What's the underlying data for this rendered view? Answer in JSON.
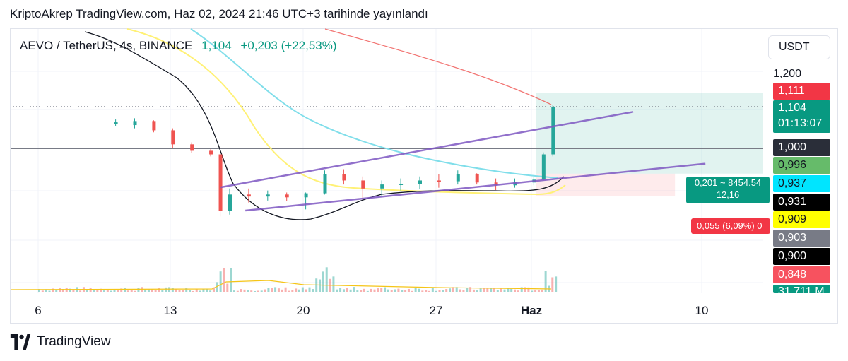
{
  "header": {
    "published": "KriptoAkrep TradingView.com, Haz 02, 2024 21:46 UTC+3 tarihinde yayınlandı"
  },
  "symbol": {
    "name": "AEVO / TetherUS, 4s, BINANCE",
    "price": "1,104",
    "change": "+0,203 (+22,53%)"
  },
  "currency": "USDT",
  "price_scale": {
    "top_label": "1,200",
    "labels": [
      {
        "text": "1,111",
        "bg": "#f23645",
        "fg": "#ffffff"
      },
      {
        "text": "1,000",
        "bg": "#2a2e39",
        "fg": "#ffffff"
      },
      {
        "text": "0,996",
        "bg": "#66bb6a",
        "fg": "#131722"
      },
      {
        "text": "0,937",
        "bg": "#00e5ff",
        "fg": "#131722"
      },
      {
        "text": "0,931",
        "bg": "#000000",
        "fg": "#ffffff"
      },
      {
        "text": "0,909",
        "bg": "#ffff00",
        "fg": "#131722"
      },
      {
        "text": "0,903",
        "bg": "#787b86",
        "fg": "#ffffff"
      },
      {
        "text": "0,900",
        "bg": "#000000",
        "fg": "#ffffff"
      },
      {
        "text": "0,848",
        "bg": "#f7525f",
        "fg": "#ffffff"
      },
      {
        "text": "31,711 M",
        "bg": "#089981",
        "fg": "#ffffff"
      }
    ],
    "current_price": "1,104",
    "countdown": "01:13:07"
  },
  "position": {
    "profit_line1": "0,201 ~ 8454.54",
    "profit_line2": "12,16",
    "loss_text": "0,055 (6,09%) 0"
  },
  "x_axis": {
    "labels": [
      "6",
      "13",
      "20",
      "27",
      "Haz",
      "10"
    ]
  },
  "footer": {
    "brand": "TradingView"
  },
  "chart_data": {
    "type": "candlestick",
    "symbol": "AEVO / TetherUS",
    "interval": "4s",
    "exchange": "BINANCE",
    "x_ticks": [
      "6",
      "13",
      "20",
      "27",
      "Haz",
      "10"
    ],
    "y_axis_visible_labels": [
      "1,200"
    ],
    "horizontal_levels": [
      1.0,
      1.104
    ],
    "channel": {
      "upper": [
        {
          "day": 15.6,
          "value": 0.903
        },
        {
          "day": 37.3,
          "value": 1.091
        }
      ],
      "lower": [
        {
          "day": 16.9,
          "value": 0.845
        },
        {
          "day": 41.1,
          "value": 0.962
        }
      ]
    },
    "position_tool": {
      "entry": 0.937,
      "target": 1.138,
      "stop": 0.882
    },
    "candles_approx": [
      [
        10.0,
        1.06,
        1.072,
        1.055,
        1.065
      ],
      [
        11.0,
        1.058,
        1.075,
        1.05,
        1.068
      ],
      [
        12.0,
        1.068,
        1.07,
        1.04,
        1.045
      ],
      [
        13.0,
        1.045,
        1.05,
        1.0,
        1.01
      ],
      [
        14.0,
        1.01,
        1.015,
        0.988,
        0.994
      ],
      [
        15.0,
        0.994,
        0.998,
        0.98,
        0.985
      ],
      [
        15.5,
        0.985,
        0.988,
        0.83,
        0.845
      ],
      [
        16.0,
        0.845,
        0.9,
        0.835,
        0.885
      ],
      [
        17.0,
        0.885,
        0.9,
        0.865,
        0.88
      ],
      [
        18.0,
        0.88,
        0.895,
        0.87,
        0.885
      ],
      [
        19.0,
        0.885,
        0.89,
        0.868,
        0.878
      ],
      [
        20.0,
        0.878,
        0.89,
        0.848,
        0.888
      ],
      [
        21.0,
        0.888,
        0.945,
        0.885,
        0.935
      ],
      [
        22.0,
        0.935,
        0.948,
        0.91,
        0.92
      ],
      [
        23.0,
        0.92,
        0.93,
        0.872,
        0.9
      ],
      [
        24.0,
        0.9,
        0.92,
        0.882,
        0.91
      ],
      [
        25.0,
        0.91,
        0.925,
        0.895,
        0.912
      ],
      [
        26.0,
        0.912,
        0.93,
        0.898,
        0.92
      ],
      [
        27.0,
        0.92,
        0.935,
        0.902,
        0.918
      ],
      [
        28.0,
        0.918,
        0.945,
        0.91,
        0.935
      ],
      [
        29.0,
        0.935,
        0.938,
        0.91,
        0.915
      ],
      [
        30.0,
        0.915,
        0.925,
        0.896,
        0.908
      ],
      [
        31.0,
        0.908,
        0.925,
        0.902,
        0.915
      ],
      [
        32.0,
        0.915,
        0.93,
        0.908,
        0.922
      ],
      [
        32.5,
        0.922,
        0.99,
        0.92,
        0.985
      ],
      [
        33.0,
        0.985,
        1.108,
        0.98,
        1.104
      ]
    ],
    "volume_note": "volume bars in lower pane; spike on day 15, rising on final candles"
  }
}
